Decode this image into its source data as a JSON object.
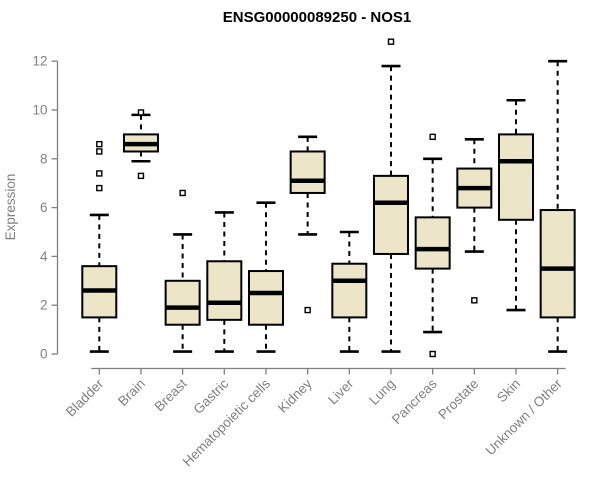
{
  "chart_data": {
    "type": "boxplot",
    "title": "ENSG00000089250 - NOS1",
    "xlabel": "",
    "ylabel": "Expression",
    "ylim": [
      0,
      12
    ],
    "yticks": [
      0,
      2,
      4,
      6,
      8,
      10,
      12
    ],
    "grid": false,
    "legend": "none",
    "categories": [
      "Bladder",
      "Brain",
      "Breast",
      "Gastric",
      "Hematopoietic cells",
      "Kidney",
      "Liver",
      "Lung",
      "Pancreas",
      "Prostate",
      "Skin",
      "Unknown / Other"
    ],
    "boxes": [
      {
        "category": "Bladder",
        "whisker_low": 0.1,
        "q1": 1.5,
        "median": 2.6,
        "q3": 3.6,
        "whisker_high": 5.7,
        "outliers": [
          6.8,
          7.4,
          8.3,
          8.6
        ]
      },
      {
        "category": "Brain",
        "whisker_low": 7.9,
        "q1": 8.3,
        "median": 8.6,
        "q3": 9.0,
        "whisker_high": 9.8,
        "outliers": [
          7.3,
          9.9
        ]
      },
      {
        "category": "Breast",
        "whisker_low": 0.1,
        "q1": 1.2,
        "median": 1.9,
        "q3": 3.0,
        "whisker_high": 4.9,
        "outliers": [
          6.6
        ]
      },
      {
        "category": "Gastric",
        "whisker_low": 0.1,
        "q1": 1.4,
        "median": 2.1,
        "q3": 3.8,
        "whisker_high": 5.8,
        "outliers": []
      },
      {
        "category": "Hematopoietic cells",
        "whisker_low": 0.1,
        "q1": 1.2,
        "median": 2.5,
        "q3": 3.4,
        "whisker_high": 6.2,
        "outliers": []
      },
      {
        "category": "Kidney",
        "whisker_low": 4.9,
        "q1": 6.6,
        "median": 7.1,
        "q3": 8.3,
        "whisker_high": 8.9,
        "outliers": [
          1.8
        ]
      },
      {
        "category": "Liver",
        "whisker_low": 0.1,
        "q1": 1.5,
        "median": 3.0,
        "q3": 3.7,
        "whisker_high": 5.0,
        "outliers": []
      },
      {
        "category": "Lung",
        "whisker_low": 0.1,
        "q1": 4.1,
        "median": 6.2,
        "q3": 7.3,
        "whisker_high": 11.8,
        "outliers": [
          12.8
        ]
      },
      {
        "category": "Pancreas",
        "whisker_low": 0.9,
        "q1": 3.5,
        "median": 4.3,
        "q3": 5.6,
        "whisker_high": 8.0,
        "outliers": [
          0.0,
          8.9
        ]
      },
      {
        "category": "Prostate",
        "whisker_low": 4.2,
        "q1": 6.0,
        "median": 6.8,
        "q3": 7.6,
        "whisker_high": 8.8,
        "outliers": [
          2.2
        ]
      },
      {
        "category": "Skin",
        "whisker_low": 1.8,
        "q1": 5.5,
        "median": 7.9,
        "q3": 9.0,
        "whisker_high": 10.4,
        "outliers": []
      },
      {
        "category": "Unknown / Other",
        "whisker_low": 0.1,
        "q1": 1.5,
        "median": 3.5,
        "q3": 5.9,
        "whisker_high": 12.0,
        "outliers": []
      }
    ],
    "colors": {
      "box_fill": "#ece5c7",
      "box_border": "#000000",
      "median": "#000000",
      "whisker": "#000000",
      "outlier_fill": "#ffffff",
      "axis": "#808080",
      "tick_label": "#808080",
      "title": "#000000",
      "background": "#ffffff"
    }
  }
}
